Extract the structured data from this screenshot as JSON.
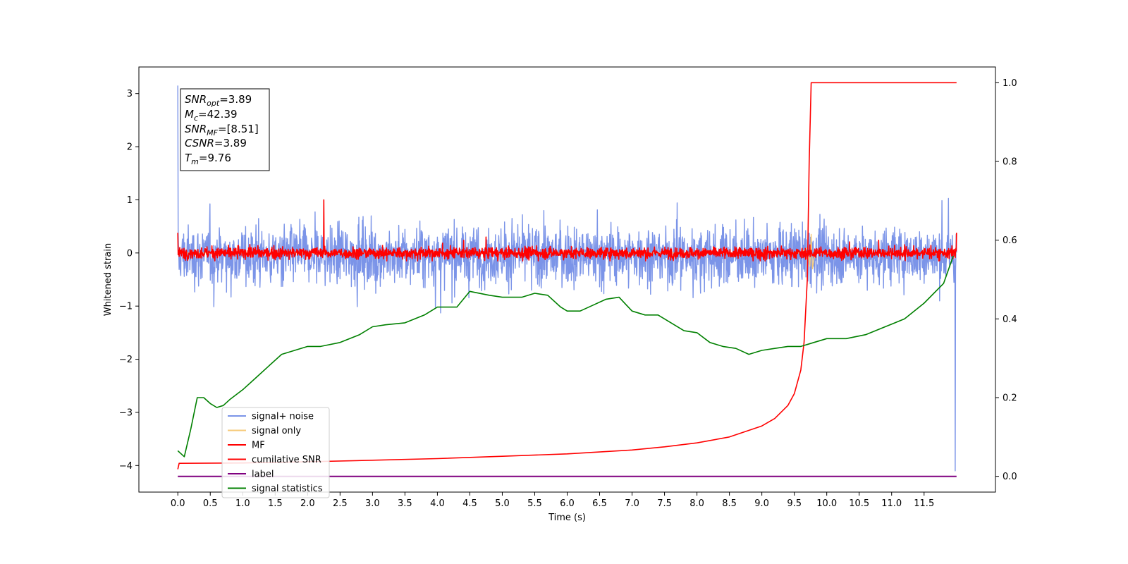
{
  "chart_data": {
    "type": "line",
    "title": "",
    "xlabel": "Time (s)",
    "ylabel": "Whitened strain",
    "xlim": [
      -0.6,
      12.6
    ],
    "ylim_left": [
      -4.5,
      3.5
    ],
    "ylim_right": [
      -0.04,
      1.04
    ],
    "x_ticks": [
      "0.0",
      "0.5",
      "1.0",
      "1.5",
      "2.0",
      "2.5",
      "3.0",
      "3.5",
      "4.0",
      "4.5",
      "5.0",
      "5.5",
      "6.0",
      "6.5",
      "7.0",
      "7.5",
      "8.0",
      "8.5",
      "9.0",
      "9.5",
      "10.0",
      "10.5",
      "11.0",
      "11.5"
    ],
    "y_ticks_left": [
      "3",
      "2",
      "1",
      "0",
      "−1",
      "−2",
      "−3",
      "−4"
    ],
    "y_ticks_right": [
      "1.0",
      "0.8",
      "0.6",
      "0.4",
      "0.2",
      "0.0"
    ],
    "grid": false,
    "legend_position": "lower-left",
    "annotation": {
      "snr_opt": {
        "base": "SNR",
        "sub": "opt",
        "value": "=3.89"
      },
      "mc": {
        "base": "M",
        "sub": "c",
        "value": "=42.39"
      },
      "snr_mf": {
        "base": "SNR",
        "sub": "MF",
        "value": "=[8.51]"
      },
      "csnr": {
        "base": "CSNR",
        "sub": "",
        "value": "=3.89"
      },
      "tm": {
        "base": "T",
        "sub": "m",
        "value": "=9.76"
      }
    },
    "series": [
      {
        "name": "signal+ noise",
        "axis": "left",
        "color": "#7b94e8",
        "style": "noise band",
        "x_range": [
          0.0,
          12.0
        ],
        "amplitude_envelope": [
          -1.2,
          1.3
        ],
        "spikes": [
          {
            "x": 0.0,
            "y": 3.15
          },
          {
            "x": 11.98,
            "y": -4.1
          }
        ]
      },
      {
        "name": "signal only",
        "axis": "left",
        "color": "#f6ca7a",
        "x": [
          0.0,
          9.6,
          9.7,
          9.74,
          9.76,
          9.78,
          9.82,
          12.0
        ],
        "y": [
          0.0,
          0.0,
          0.1,
          -0.25,
          0.35,
          -0.3,
          0.0,
          0.0
        ]
      },
      {
        "name": "MF",
        "axis": "left",
        "color": "#ff0000",
        "style": "noise band",
        "x_range": [
          0.0,
          12.0
        ],
        "amplitude_envelope": [
          -0.15,
          0.3
        ],
        "spikes": [
          {
            "x": 2.25,
            "y": 1.0
          },
          {
            "x": 0.0,
            "y": 0.38
          },
          {
            "x": 12.0,
            "y": 0.38
          }
        ]
      },
      {
        "name": "cumilative SNR",
        "axis": "right",
        "color": "#ff0000",
        "x": [
          0.0,
          0.02,
          1.0,
          2.0,
          3.0,
          4.0,
          5.0,
          6.0,
          7.0,
          7.5,
          8.0,
          8.5,
          9.0,
          9.2,
          9.4,
          9.5,
          9.6,
          9.65,
          9.7,
          9.73,
          9.76,
          9.8,
          12.0
        ],
        "y": [
          0.018,
          0.033,
          0.034,
          0.037,
          0.041,
          0.045,
          0.051,
          0.057,
          0.067,
          0.075,
          0.085,
          0.1,
          0.128,
          0.147,
          0.18,
          0.21,
          0.27,
          0.34,
          0.5,
          0.8,
          1.0,
          1.0,
          1.0
        ]
      },
      {
        "name": "label",
        "axis": "right",
        "color": "#800080",
        "x": [
          0.0,
          12.0
        ],
        "y": [
          0.0,
          0.0
        ]
      },
      {
        "name": "signal statistics",
        "axis": "right",
        "color": "#008000",
        "x": [
          0.0,
          0.1,
          0.2,
          0.3,
          0.4,
          0.5,
          0.6,
          0.7,
          0.8,
          1.0,
          1.2,
          1.4,
          1.6,
          1.8,
          2.0,
          2.2,
          2.5,
          2.8,
          3.0,
          3.2,
          3.5,
          3.8,
          4.0,
          4.3,
          4.5,
          4.8,
          5.0,
          5.3,
          5.5,
          5.7,
          5.9,
          6.0,
          6.2,
          6.4,
          6.6,
          6.8,
          7.0,
          7.2,
          7.4,
          7.6,
          7.8,
          8.0,
          8.2,
          8.4,
          8.6,
          8.8,
          9.0,
          9.2,
          9.4,
          9.6,
          9.8,
          10.0,
          10.3,
          10.6,
          10.9,
          11.2,
          11.5,
          11.8,
          11.95
        ],
        "y": [
          0.065,
          0.05,
          0.12,
          0.2,
          0.2,
          0.185,
          0.175,
          0.18,
          0.195,
          0.22,
          0.25,
          0.28,
          0.31,
          0.32,
          0.33,
          0.33,
          0.34,
          0.36,
          0.38,
          0.385,
          0.39,
          0.41,
          0.43,
          0.43,
          0.47,
          0.46,
          0.455,
          0.455,
          0.465,
          0.46,
          0.43,
          0.42,
          0.42,
          0.435,
          0.45,
          0.455,
          0.42,
          0.41,
          0.41,
          0.39,
          0.37,
          0.365,
          0.34,
          0.33,
          0.325,
          0.31,
          0.32,
          0.325,
          0.33,
          0.33,
          0.34,
          0.35,
          0.35,
          0.36,
          0.38,
          0.4,
          0.44,
          0.49,
          0.56
        ]
      }
    ]
  }
}
